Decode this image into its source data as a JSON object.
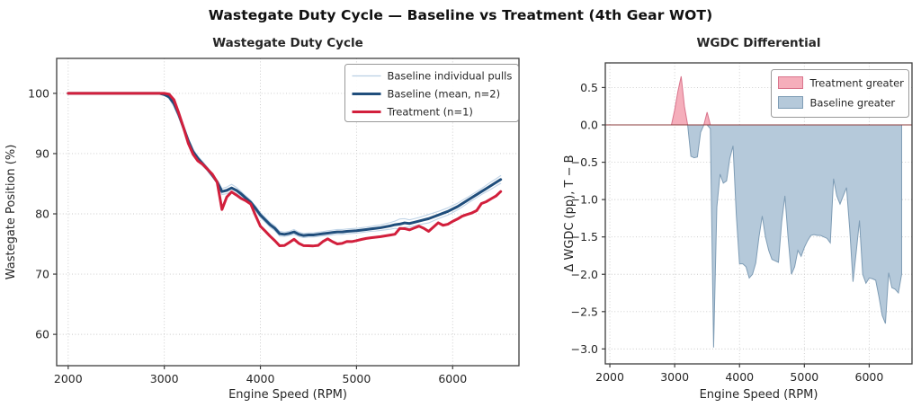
{
  "figure": {
    "suptitle": "Wastegate Duty Cycle — Baseline vs Treatment (4th Gear WOT)",
    "background": "#ffffff"
  },
  "colors": {
    "baseline_pull": "#b9cfe4",
    "baseline_mean": "#204e7c",
    "treatment": "#d21f3c",
    "diff_positive_fill": "#f5aebb",
    "diff_positive_edge": "#d9748c",
    "diff_negative_fill": "#b5c9da",
    "diff_negative_edge": "#7e9cb5",
    "zero_line": "#8b3b3b",
    "grid": "#c9c9c9",
    "spine": "#3d3d3d",
    "tick_label": "#262626",
    "legend_border": "#999999"
  },
  "chart_data": [
    {
      "type": "line",
      "title": "Wastegate Duty Cycle",
      "xlabel": "Engine Speed (RPM)",
      "ylabel": "Wastegate Position (%)",
      "xlim": [
        1880,
        6690
      ],
      "ylim": [
        54.8,
        105.8
      ],
      "xticks": [
        2000,
        3000,
        4000,
        5000,
        6000
      ],
      "yticks": [
        60,
        70,
        80,
        90,
        100
      ],
      "grid": true,
      "legend_position": "upper right",
      "legend": [
        "Baseline individual pulls",
        "Baseline (mean, n=2)",
        "Treatment (n=1)"
      ],
      "x_rpm": [
        2000,
        2050,
        2100,
        2150,
        2200,
        2250,
        2300,
        2350,
        2400,
        2450,
        2500,
        2550,
        2600,
        2650,
        2700,
        2750,
        2800,
        2850,
        2900,
        2950,
        3000,
        3050,
        3100,
        3150,
        3200,
        3250,
        3300,
        3350,
        3400,
        3450,
        3500,
        3550,
        3600,
        3650,
        3700,
        3750,
        3800,
        3850,
        3900,
        3950,
        4000,
        4050,
        4100,
        4150,
        4200,
        4250,
        4300,
        4350,
        4400,
        4450,
        4500,
        4550,
        4600,
        4650,
        4700,
        4750,
        4800,
        4850,
        4900,
        4950,
        5000,
        5050,
        5100,
        5150,
        5200,
        5250,
        5300,
        5350,
        5400,
        5450,
        5500,
        5550,
        5600,
        5650,
        5700,
        5750,
        5800,
        5850,
        5900,
        5950,
        6000,
        6050,
        6100,
        6150,
        6200,
        6250,
        6300,
        6350,
        6400,
        6450,
        6500
      ],
      "baseline_mean": [
        100,
        100,
        100,
        100,
        100,
        100,
        100,
        100,
        100,
        100,
        100,
        100,
        100,
        100,
        100,
        100,
        100,
        100,
        100,
        100,
        99.8,
        99.4,
        98.3,
        96.5,
        94.3,
        92.1,
        90.3,
        89.2,
        88.3,
        87.4,
        86.4,
        85.3,
        83.7,
        83.9,
        84.3,
        83.9,
        83.3,
        82.6,
        81.9,
        80.9,
        79.8,
        79.0,
        78.2,
        77.6,
        76.7,
        76.6,
        76.75,
        77.0,
        76.6,
        76.4,
        76.5,
        76.5,
        76.6,
        76.7,
        76.8,
        76.9,
        77.0,
        77.0,
        77.1,
        77.15,
        77.2,
        77.3,
        77.4,
        77.5,
        77.6,
        77.7,
        77.85,
        78.0,
        78.2,
        78.3,
        78.5,
        78.4,
        78.6,
        78.8,
        79.0,
        79.2,
        79.5,
        79.8,
        80.1,
        80.4,
        80.8,
        81.2,
        81.7,
        82.2,
        82.7,
        83.2,
        83.7,
        84.2,
        84.7,
        85.2,
        85.7
      ],
      "treatment": [
        100,
        100,
        100,
        100,
        100,
        100,
        100,
        100,
        100,
        100,
        100,
        100,
        100,
        100,
        100,
        100,
        100,
        100,
        100,
        100,
        100.0,
        99.85,
        98.95,
        96.75,
        94.3,
        91.68,
        89.86,
        88.77,
        88.2,
        87.4,
        86.57,
        85.25,
        80.72,
        82.8,
        83.64,
        83.12,
        82.55,
        82.15,
        81.62,
        79.7,
        77.94,
        77.14,
        76.3,
        75.55,
        74.7,
        74.75,
        75.25,
        75.78,
        75.1,
        74.72,
        74.7,
        74.68,
        74.76,
        75.4,
        75.85,
        75.38,
        75.0,
        75.1,
        75.42,
        75.39,
        75.56,
        75.75,
        75.92,
        76.03,
        76.12,
        76.22,
        76.35,
        76.48,
        76.62,
        77.58,
        77.55,
        77.34,
        77.65,
        77.96,
        77.6,
        77.1,
        77.8,
        78.52,
        78.1,
        78.28,
        78.75,
        79.14,
        79.62,
        79.9,
        80.15,
        80.54,
        81.72,
        82.02,
        82.5,
        82.95,
        83.7
      ],
      "baseline_pull_spread": [
        0,
        0,
        0,
        0,
        0,
        0,
        0,
        0,
        0,
        0,
        0,
        0,
        0,
        0,
        0,
        0,
        0,
        0,
        0,
        0,
        0,
        0.3,
        0.5,
        0.55,
        0.5,
        0.45,
        0.4,
        0.35,
        0.35,
        0.3,
        0.3,
        0.3,
        0.5,
        0.55,
        0.6,
        0.5,
        0.4,
        0.35,
        0.35,
        0.35,
        0.4,
        0.4,
        0.4,
        0.4,
        0.4,
        0.35,
        0.35,
        0.4,
        0.35,
        0.35,
        0.35,
        0.35,
        0.35,
        0.35,
        0.4,
        0.4,
        0.4,
        0.4,
        0.4,
        0.4,
        0.4,
        0.4,
        0.4,
        0.4,
        0.45,
        0.45,
        0.5,
        0.55,
        0.6,
        0.85,
        0.7,
        0.6,
        0.6,
        0.6,
        0.65,
        0.7,
        0.65,
        0.6,
        0.6,
        0.6,
        0.6,
        0.55,
        0.55,
        0.5,
        0.5,
        0.5,
        0.5,
        0.55,
        0.6,
        0.6,
        0.65
      ]
    },
    {
      "type": "area",
      "title": "WGDC Differential",
      "xlabel": "Engine Speed (RPM)",
      "ylabel": "Δ WGDC (pp), T − B",
      "xlim": [
        1930,
        6660
      ],
      "ylim": [
        -3.2,
        0.83
      ],
      "xticks": [
        2000,
        3000,
        4000,
        5000,
        6000
      ],
      "yticks": [
        0.5,
        0.0,
        -0.5,
        -1.0,
        -1.5,
        -2.0,
        -2.5,
        -3.0
      ],
      "grid": true,
      "legend_position": "upper right",
      "legend": [
        "Treatment greater",
        "Baseline greater"
      ],
      "x_rpm": [
        2000,
        2050,
        2100,
        2150,
        2200,
        2250,
        2300,
        2350,
        2400,
        2450,
        2500,
        2550,
        2600,
        2650,
        2700,
        2750,
        2800,
        2850,
        2900,
        2950,
        3000,
        3050,
        3100,
        3150,
        3200,
        3250,
        3300,
        3350,
        3400,
        3450,
        3500,
        3550,
        3600,
        3650,
        3700,
        3750,
        3800,
        3850,
        3900,
        3950,
        4000,
        4050,
        4100,
        4150,
        4200,
        4250,
        4300,
        4350,
        4400,
        4450,
        4500,
        4550,
        4600,
        4650,
        4700,
        4750,
        4800,
        4850,
        4900,
        4950,
        5000,
        5050,
        5100,
        5150,
        5200,
        5250,
        5300,
        5350,
        5400,
        5450,
        5500,
        5550,
        5600,
        5650,
        5700,
        5750,
        5800,
        5850,
        5900,
        5950,
        6000,
        6050,
        6100,
        6150,
        6200,
        6250,
        6300,
        6350,
        6400,
        6450,
        6500
      ],
      "delta_pp": [
        0,
        0,
        0,
        0,
        0,
        0,
        0,
        0,
        0,
        0,
        0,
        0,
        0,
        0,
        0,
        0,
        0,
        0,
        0,
        0,
        0.2,
        0.45,
        0.65,
        0.25,
        0,
        -0.42,
        -0.44,
        -0.43,
        -0.1,
        0,
        0.17,
        -0.05,
        -2.98,
        -1.1,
        -0.66,
        -0.78,
        -0.75,
        -0.45,
        -0.28,
        -1.2,
        -1.86,
        -1.86,
        -1.9,
        -2.05,
        -2.0,
        -1.85,
        -1.5,
        -1.22,
        -1.5,
        -1.68,
        -1.8,
        -1.82,
        -1.84,
        -1.3,
        -0.95,
        -1.52,
        -2.0,
        -1.9,
        -1.68,
        -1.76,
        -1.64,
        -1.55,
        -1.48,
        -1.47,
        -1.48,
        -1.48,
        -1.5,
        -1.52,
        -1.58,
        -0.72,
        -0.95,
        -1.06,
        -0.95,
        -0.84,
        -1.4,
        -2.1,
        -1.7,
        -1.28,
        -2.0,
        -2.12,
        -2.05,
        -2.06,
        -2.08,
        -2.3,
        -2.55,
        -2.66,
        -1.98,
        -2.18,
        -2.2,
        -2.25,
        -2.0
      ]
    }
  ]
}
